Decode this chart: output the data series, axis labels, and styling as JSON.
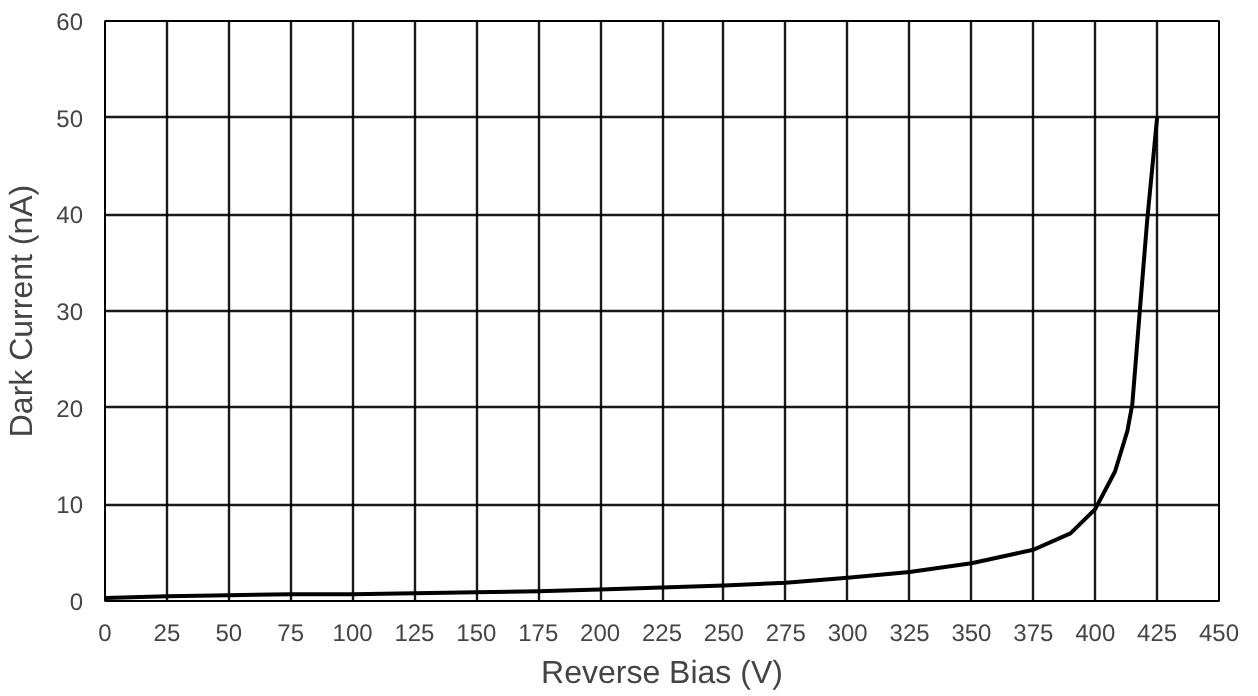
{
  "chart_data": {
    "type": "line",
    "xlabel": "Reverse Bias (V)",
    "ylabel": "Dark Current (nA)",
    "x": [
      0,
      25,
      50,
      75,
      100,
      125,
      150,
      175,
      200,
      225,
      250,
      275,
      300,
      325,
      350,
      375,
      390,
      400,
      408,
      413,
      415,
      418,
      421,
      425
    ],
    "series": [
      {
        "color": "#000000",
        "values": [
          0.3,
          0.5,
          0.6,
          0.7,
          0.7,
          0.8,
          0.9,
          1.0,
          1.2,
          1.4,
          1.6,
          1.9,
          2.4,
          3.0,
          3.9,
          5.3,
          7.0,
          9.5,
          13.4,
          17.6,
          20.4,
          30,
          39.4,
          50
        ]
      }
    ],
    "xlim": [
      0,
      450
    ],
    "ylim": [
      0,
      60
    ],
    "xticks": [
      0,
      25,
      50,
      75,
      100,
      125,
      150,
      175,
      200,
      225,
      250,
      275,
      300,
      325,
      350,
      375,
      400,
      425,
      450
    ],
    "yticks": [
      0,
      10,
      20,
      30,
      40,
      50,
      60
    ],
    "grid": true,
    "marker": "none",
    "line_style": "solid"
  }
}
